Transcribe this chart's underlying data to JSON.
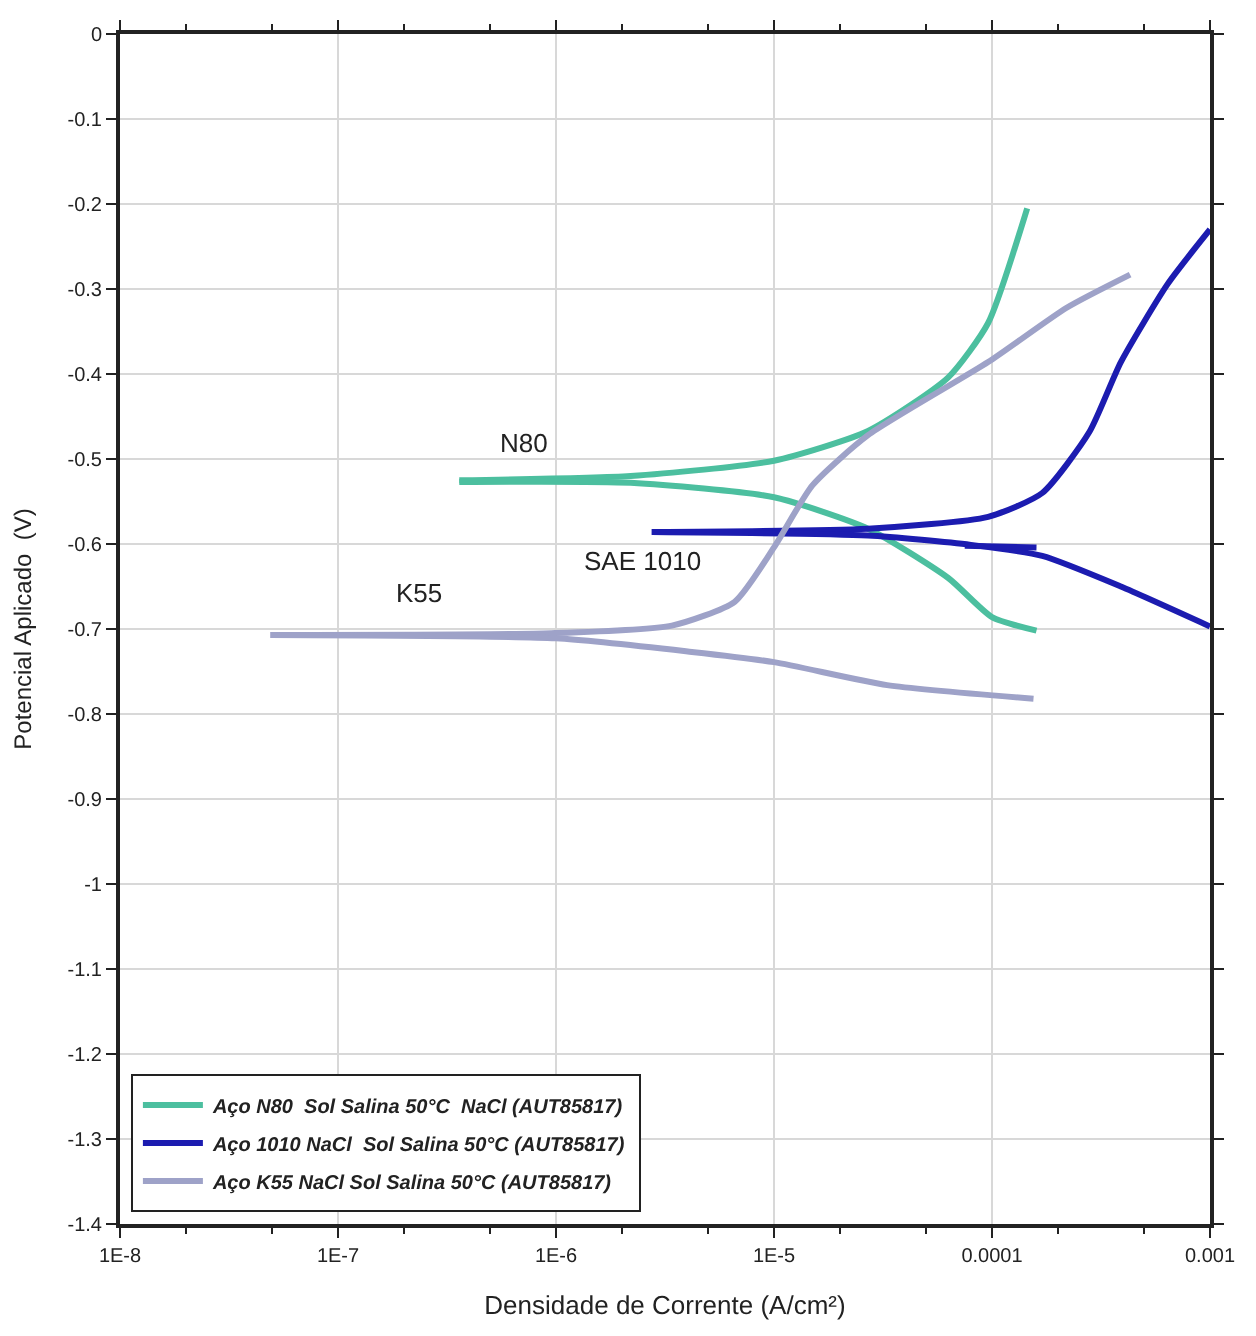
{
  "chart_data": {
    "type": "line",
    "xlabel": "Densidade de Corrente (A/cm²)",
    "ylabel": "Potencial Aplicado  (V)",
    "log": "x",
    "xlim": [
      1e-08,
      0.001
    ],
    "ylim": [
      -1.4,
      0
    ],
    "xticks": [
      {
        "value": 1e-08,
        "label": "1E-8"
      },
      {
        "value": 1e-07,
        "label": "1E-7"
      },
      {
        "value": 1e-06,
        "label": "1E-6"
      },
      {
        "value": 1e-05,
        "label": "1E-5"
      },
      {
        "value": 0.0001,
        "label": "0.0001"
      },
      {
        "value": 0.001,
        "label": "0.001"
      }
    ],
    "yticks": [
      0,
      -0.1,
      -0.2,
      -0.3,
      -0.4,
      -0.5,
      -0.6,
      -0.7,
      -0.8,
      -0.9,
      -1,
      -1.1,
      -1.2,
      -1.3,
      -1.4
    ],
    "grid": true,
    "legend": "bottom left",
    "marker": "none",
    "line_style": "solid",
    "series": [
      {
        "name": "Aço N80  Sol Salina 50°C  NaCl (AUT85817)",
        "color": "#4cbf9f",
        "x": [
          3.6e-07,
          2.2e-06,
          1e-05,
          2.7e-05,
          6.3e-05,
          9.6e-05,
          0.000145
        ],
        "values": [
          -0.525,
          -0.52,
          -0.502,
          -0.467,
          -0.404,
          -0.34,
          -0.205
        ]
      },
      {
        "color": "#4cbf9f",
        "x": [
          3.6e-07,
          2.2e-06,
          1e-05,
          2.7e-05,
          6.3e-05,
          0.0001,
          0.00016
        ],
        "values": [
          -0.527,
          -0.528,
          -0.545,
          -0.582,
          -0.64,
          -0.686,
          -0.702
        ]
      },
      {
        "name": "Aço 1010 NaCl  Sol Salina 50°C (AUT85817)",
        "color": "#1c1cb0",
        "x": [
          2.75e-06,
          2.7e-05,
          9.6e-05,
          0.00017,
          0.00028,
          0.00039,
          0.00064,
          0.001
        ],
        "values": [
          -0.586,
          -0.582,
          -0.568,
          -0.54,
          -0.468,
          -0.386,
          -0.294,
          -0.23
        ]
      },
      {
        "color": "#1c1cb0",
        "x": [
          2.75e-06,
          2.7e-05,
          8e-05,
          0.00017,
          0.00039,
          0.001
        ],
        "values": [
          -0.586,
          -0.59,
          -0.601,
          -0.614,
          -0.65,
          -0.697
        ]
      },
      {
        "color": "#1c1cb0",
        "x": [
          7.5e-05,
          0.00016
        ],
        "values": [
          -0.602,
          -0.604
        ]
      },
      {
        "name": "Aço K55 NaCl Sol Salina 50°C (AUT85817)",
        "color": "#9ea2c8",
        "x": [
          4.9e-08,
          9.5e-07,
          3.4e-06,
          6.6e-06,
          1e-05,
          1.5e-05,
          2.7e-05,
          9.6e-05,
          0.00022,
          0.00043
        ],
        "values": [
          -0.707,
          -0.705,
          -0.696,
          -0.668,
          -0.604,
          -0.531,
          -0.472,
          -0.386,
          -0.322,
          -0.283
        ]
      },
      {
        "color": "#9ea2c8",
        "x": [
          4.9e-08,
          1e-06,
          4.2e-06,
          1e-05,
          3.3e-05,
          0.000155
        ],
        "values": [
          -0.707,
          -0.711,
          -0.727,
          -0.739,
          -0.766,
          -0.782
        ]
      }
    ],
    "annotations": [
      "N80",
      "SAE 1010",
      "K55"
    ]
  }
}
